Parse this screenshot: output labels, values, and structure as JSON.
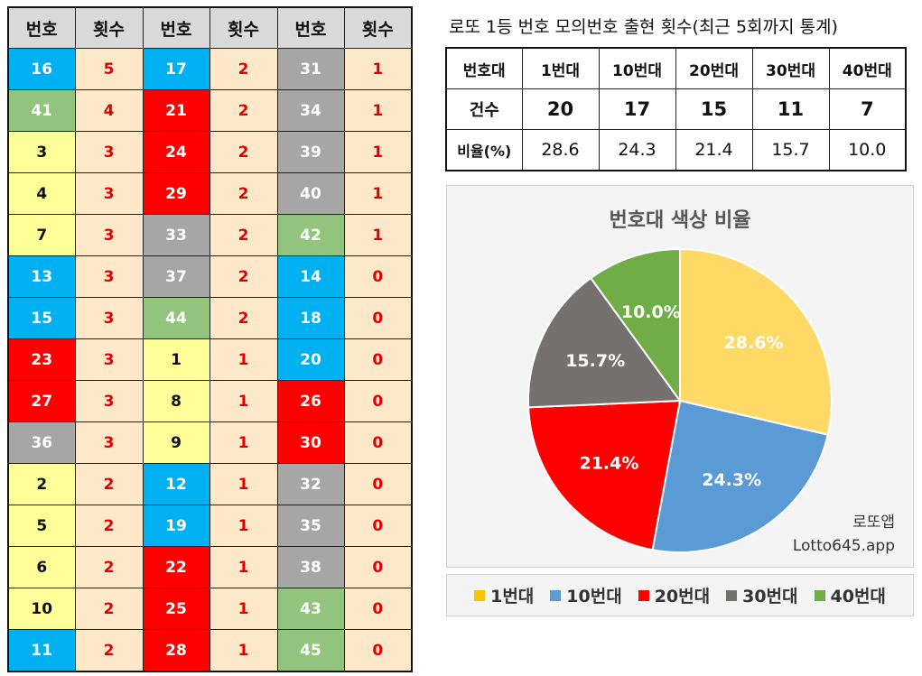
{
  "freq_table": {
    "headers": [
      "번호",
      "횟수",
      "번호",
      "횟수",
      "번호",
      "횟수"
    ],
    "rows": [
      [
        {
          "n": "16",
          "c": "blue"
        },
        "5",
        {
          "n": "17",
          "c": "blue"
        },
        "2",
        {
          "n": "31",
          "c": "gray"
        },
        "1"
      ],
      [
        {
          "n": "41",
          "c": "green"
        },
        "4",
        {
          "n": "21",
          "c": "red"
        },
        "2",
        {
          "n": "34",
          "c": "gray"
        },
        "1"
      ],
      [
        {
          "n": "3",
          "c": "yellow"
        },
        "3",
        {
          "n": "24",
          "c": "red"
        },
        "2",
        {
          "n": "39",
          "c": "gray"
        },
        "1"
      ],
      [
        {
          "n": "4",
          "c": "yellow"
        },
        "3",
        {
          "n": "29",
          "c": "red"
        },
        "2",
        {
          "n": "40",
          "c": "gray"
        },
        "1"
      ],
      [
        {
          "n": "7",
          "c": "yellow"
        },
        "3",
        {
          "n": "33",
          "c": "gray"
        },
        "2",
        {
          "n": "42",
          "c": "green"
        },
        "1"
      ],
      [
        {
          "n": "13",
          "c": "blue"
        },
        "3",
        {
          "n": "37",
          "c": "gray"
        },
        "2",
        {
          "n": "14",
          "c": "blue"
        },
        "0"
      ],
      [
        {
          "n": "15",
          "c": "blue"
        },
        "3",
        {
          "n": "44",
          "c": "green"
        },
        "2",
        {
          "n": "18",
          "c": "blue"
        },
        "0"
      ],
      [
        {
          "n": "23",
          "c": "red"
        },
        "3",
        {
          "n": "1",
          "c": "yellow"
        },
        "1",
        {
          "n": "20",
          "c": "blue"
        },
        "0"
      ],
      [
        {
          "n": "27",
          "c": "red"
        },
        "3",
        {
          "n": "8",
          "c": "yellow"
        },
        "1",
        {
          "n": "26",
          "c": "red"
        },
        "0"
      ],
      [
        {
          "n": "36",
          "c": "gray"
        },
        "3",
        {
          "n": "9",
          "c": "yellow"
        },
        "1",
        {
          "n": "30",
          "c": "red"
        },
        "0"
      ],
      [
        {
          "n": "2",
          "c": "yellow"
        },
        "2",
        {
          "n": "12",
          "c": "blue"
        },
        "1",
        {
          "n": "32",
          "c": "gray"
        },
        "0"
      ],
      [
        {
          "n": "5",
          "c": "yellow"
        },
        "2",
        {
          "n": "19",
          "c": "blue"
        },
        "1",
        {
          "n": "35",
          "c": "gray"
        },
        "0"
      ],
      [
        {
          "n": "6",
          "c": "yellow"
        },
        "2",
        {
          "n": "22",
          "c": "red"
        },
        "1",
        {
          "n": "38",
          "c": "gray"
        },
        "0"
      ],
      [
        {
          "n": "10",
          "c": "yellow"
        },
        "2",
        {
          "n": "25",
          "c": "red"
        },
        "1",
        {
          "n": "43",
          "c": "green"
        },
        "0"
      ],
      [
        {
          "n": "11",
          "c": "blue"
        },
        "2",
        {
          "n": "28",
          "c": "red"
        },
        "1",
        {
          "n": "45",
          "c": "green"
        },
        "0"
      ]
    ]
  },
  "summary": {
    "title": "로또 1등 번호 모의번호 출현 횟수(최근 5회까지 통계)",
    "header": [
      "번호대",
      "1번대",
      "10번대",
      "20번대",
      "30번대",
      "40번대"
    ],
    "count_label": "건수",
    "counts": [
      "20",
      "17",
      "15",
      "11",
      "7"
    ],
    "ratio_label": "비율(%)",
    "ratios": [
      "28.6",
      "24.3",
      "21.4",
      "15.7",
      "10.0"
    ]
  },
  "chart_data": {
    "type": "pie",
    "title": "번호대 색상 비율",
    "categories": [
      "1번대",
      "10번대",
      "20번대",
      "30번대",
      "40번대"
    ],
    "values": [
      28.6,
      24.3,
      21.4,
      15.7,
      10.0
    ],
    "labels": [
      "28.6%",
      "24.3%",
      "21.4%",
      "15.7%",
      "10.0%"
    ],
    "colors": [
      "#ffd966",
      "#5b9bd5",
      "#ff0000",
      "#767171",
      "#70ad47"
    ],
    "legend_colors": [
      "#ffc000",
      "#5b9bd5",
      "#ff0000",
      "#767171",
      "#70ad47"
    ],
    "legend_position": "bottom"
  },
  "watermark": {
    "line1": "로또앱",
    "line2": "Lotto645.app"
  },
  "colors": {
    "yellow": "#ffff99",
    "blue": "#00b0f0",
    "red": "#ff0000",
    "gray": "#a6a6a6",
    "green": "#92c47d",
    "count_bg": "#fde9c9",
    "count_text": "#e00000"
  }
}
